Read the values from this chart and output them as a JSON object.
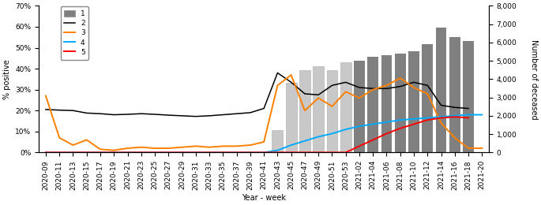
{
  "x_labels": [
    "2020-09",
    "2020-11",
    "2020-13",
    "2020-15",
    "2020-17",
    "2020-19",
    "2020-21",
    "2020-23",
    "2020-25",
    "2020-27",
    "2020-29",
    "2020-31",
    "2020-33",
    "2020-35",
    "2020-37",
    "2020-39",
    "2020-41",
    "2020-43",
    "2020-45",
    "2020-47",
    "2020-49",
    "2020-51",
    "2020-53",
    "2021-02",
    "2021-04",
    "2021-06",
    "2021-08",
    "2021-10",
    "2021-12",
    "2021-14",
    "2021-16",
    "2021-18",
    "2021-20"
  ],
  "bar_values": [
    0,
    0,
    0,
    0,
    0,
    0,
    0,
    0,
    0,
    0,
    0,
    0,
    0,
    0,
    0,
    0,
    0,
    1200,
    3800,
    4500,
    4700,
    4500,
    4900,
    5000,
    5200,
    5300,
    5400,
    5500,
    5900,
    6800,
    6300,
    6100,
    0
  ],
  "bar_filled": [
    false,
    false,
    false,
    false,
    false,
    false,
    false,
    false,
    false,
    false,
    false,
    false,
    false,
    false,
    false,
    false,
    false,
    false,
    false,
    false,
    false,
    false,
    false,
    true,
    true,
    true,
    true,
    true,
    true,
    true,
    true,
    true,
    false
  ],
  "bar_light": [
    false,
    false,
    false,
    false,
    false,
    false,
    false,
    false,
    false,
    false,
    false,
    false,
    false,
    false,
    false,
    false,
    false,
    true,
    true,
    true,
    true,
    true,
    true,
    false,
    false,
    false,
    false,
    false,
    false,
    false,
    false,
    false,
    false
  ],
  "line2_pct": [
    20.5,
    20.2,
    20.0,
    18.8,
    18.5,
    18.0,
    18.2,
    18.5,
    18.2,
    17.8,
    17.5,
    17.2,
    17.5,
    18.0,
    18.5,
    19.0,
    21.0,
    38.0,
    33.5,
    28.0,
    27.5,
    32.0,
    33.5,
    31.0,
    30.5,
    30.5,
    31.5,
    33.5,
    32.0,
    22.5,
    21.5,
    21.0,
    null
  ],
  "line3_pct": [
    27.0,
    7.0,
    3.5,
    6.0,
    1.5,
    1.0,
    2.0,
    2.5,
    2.0,
    2.0,
    2.5,
    3.0,
    2.5,
    3.0,
    3.0,
    3.5,
    5.0,
    32.0,
    37.0,
    20.0,
    26.0,
    22.0,
    29.0,
    26.0,
    30.0,
    32.0,
    35.5,
    31.0,
    28.0,
    14.0,
    7.0,
    2.0,
    2.0
  ],
  "line4_pct": [
    0.0,
    0.0,
    0.0,
    0.0,
    0.0,
    0.0,
    0.0,
    0.0,
    0.0,
    0.0,
    0.0,
    0.0,
    0.0,
    0.0,
    0.0,
    0.0,
    0.0,
    1.0,
    3.5,
    5.5,
    7.5,
    9.0,
    11.0,
    12.5,
    13.5,
    14.5,
    15.5,
    16.0,
    16.5,
    17.0,
    17.5,
    18.0,
    18.0
  ],
  "line5_pct": [
    0.0,
    0.0,
    0.0,
    0.0,
    0.0,
    0.0,
    0.0,
    0.0,
    0.0,
    0.0,
    0.0,
    0.0,
    0.0,
    0.0,
    0.0,
    0.0,
    0.0,
    0.0,
    0.0,
    0.0,
    0.0,
    0.0,
    0.0,
    3.0,
    6.0,
    9.0,
    11.5,
    13.5,
    15.5,
    16.5,
    17.0,
    16.5,
    null
  ],
  "ylim_pct": [
    0,
    70
  ],
  "ylim_bar": [
    0,
    8000
  ],
  "yticks_pct": [
    0,
    10,
    20,
    30,
    40,
    50,
    60,
    70
  ],
  "yticks_bar": [
    0,
    1000,
    2000,
    3000,
    4000,
    5000,
    6000,
    7000,
    8000
  ],
  "color_bar_dark": "#808080",
  "color_bar_light": "#c8c8c8",
  "color_line2": "#000000",
  "color_line3": "#ff8000",
  "color_line4": "#00aaff",
  "color_line5": "#ff0000",
  "xlabel": "Year - week",
  "ylabel_left": "% positive",
  "ylabel_right": "Number of deceased",
  "legend_labels": [
    "1",
    "2",
    "3",
    "4",
    "5"
  ],
  "figsize": [
    6.85,
    2.6
  ],
  "dpi": 100
}
